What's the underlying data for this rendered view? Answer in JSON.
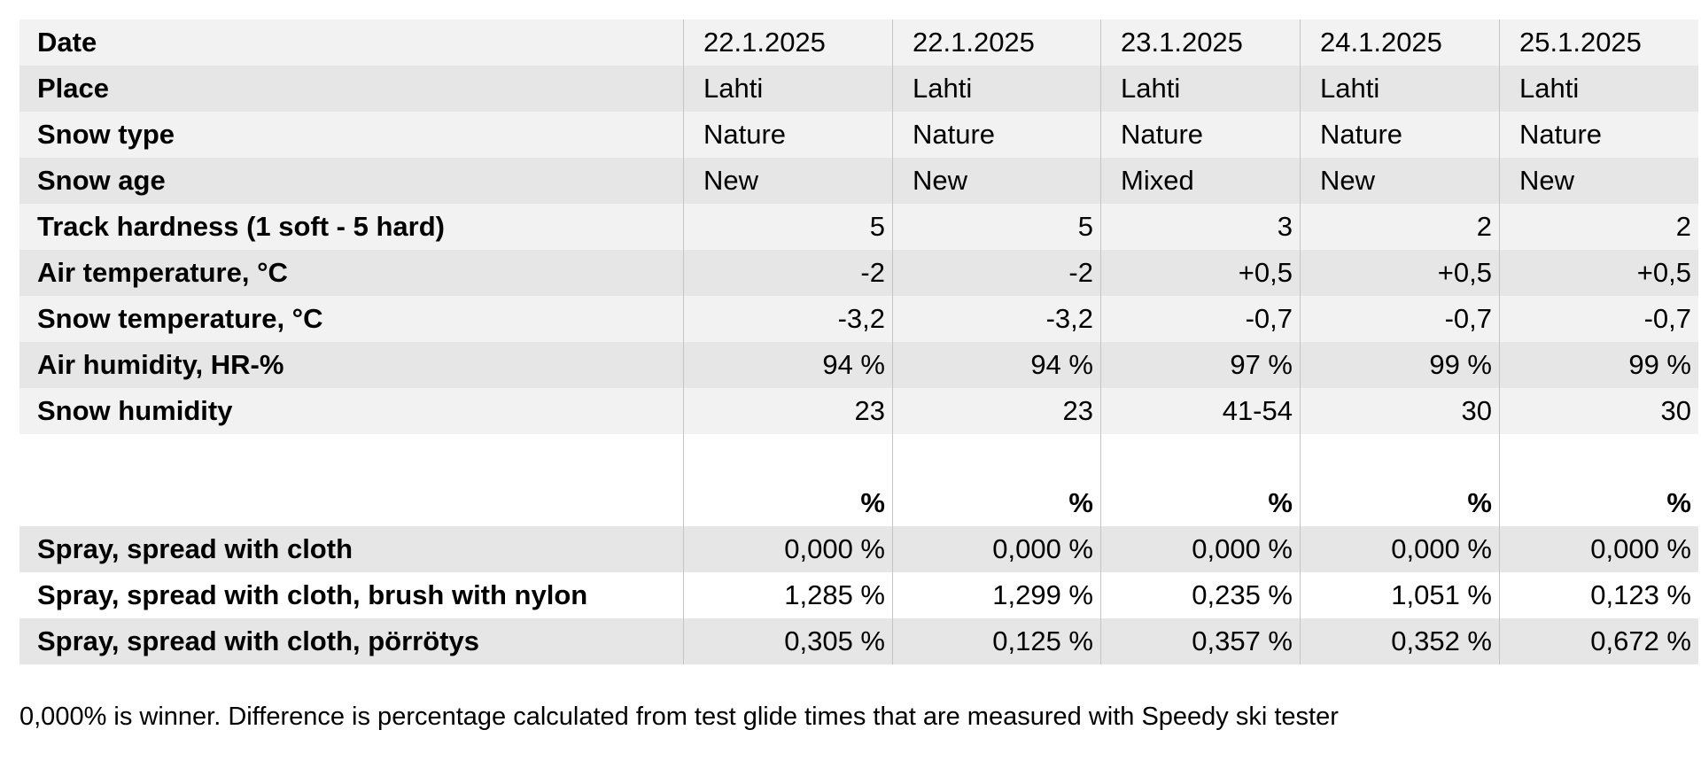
{
  "table": {
    "header": {
      "label": "Date",
      "cells": [
        "22.1.2025",
        "22.1.2025",
        "23.1.2025",
        "24.1.2025",
        "25.1.2025"
      ]
    },
    "text_rows": [
      {
        "label": "Place",
        "cells": [
          "Lahti",
          "Lahti",
          "Lahti",
          "Lahti",
          "Lahti"
        ]
      },
      {
        "label": "Snow type",
        "cells": [
          "Nature",
          "Nature",
          "Nature",
          "Nature",
          "Nature"
        ]
      },
      {
        "label": "Snow age",
        "cells": [
          "New",
          "New",
          "Mixed",
          "New",
          "New"
        ]
      }
    ],
    "numeric_rows": [
      {
        "label": "Track hardness (1 soft - 5 hard)",
        "cells": [
          "5",
          "5",
          "3",
          "2",
          "2"
        ]
      },
      {
        "label": "Air temperature, °C",
        "cells": [
          "-2",
          "-2",
          "+0,5",
          "+0,5",
          "+0,5"
        ]
      },
      {
        "label": "Snow temperature, °C",
        "cells": [
          "-3,2",
          "-3,2",
          "-0,7",
          "-0,7",
          "-0,7"
        ]
      },
      {
        "label": "Air humidity, HR-%",
        "cells": [
          "94 %",
          "94 %",
          "97 %",
          "99 %",
          "99 %"
        ]
      },
      {
        "label": "Snow humidity",
        "cells": [
          "23",
          "23",
          "41-54",
          "30",
          "30"
        ]
      }
    ],
    "unit_row": [
      "%",
      "%",
      "%",
      "%",
      "%"
    ],
    "results": [
      {
        "label": "Spray, spread with cloth",
        "cells": [
          "0,000 %",
          "0,000 %",
          "0,000 %",
          "0,000 %",
          "0,000 %"
        ]
      },
      {
        "label": "Spray, spread with cloth, brush with nylon",
        "cells": [
          "1,285 %",
          "1,299 %",
          "0,235 %",
          "1,051 %",
          "0,123 %"
        ]
      },
      {
        "label": "Spray, spread with cloth, pörrötys",
        "cells": [
          "0,305 %",
          "0,125 %",
          "0,357 %",
          "0,352 %",
          "0,672 %"
        ]
      }
    ]
  },
  "footnote": "0,000% is winner. Difference is percentage calculated from test glide times that are measured with Speedy ski tester"
}
